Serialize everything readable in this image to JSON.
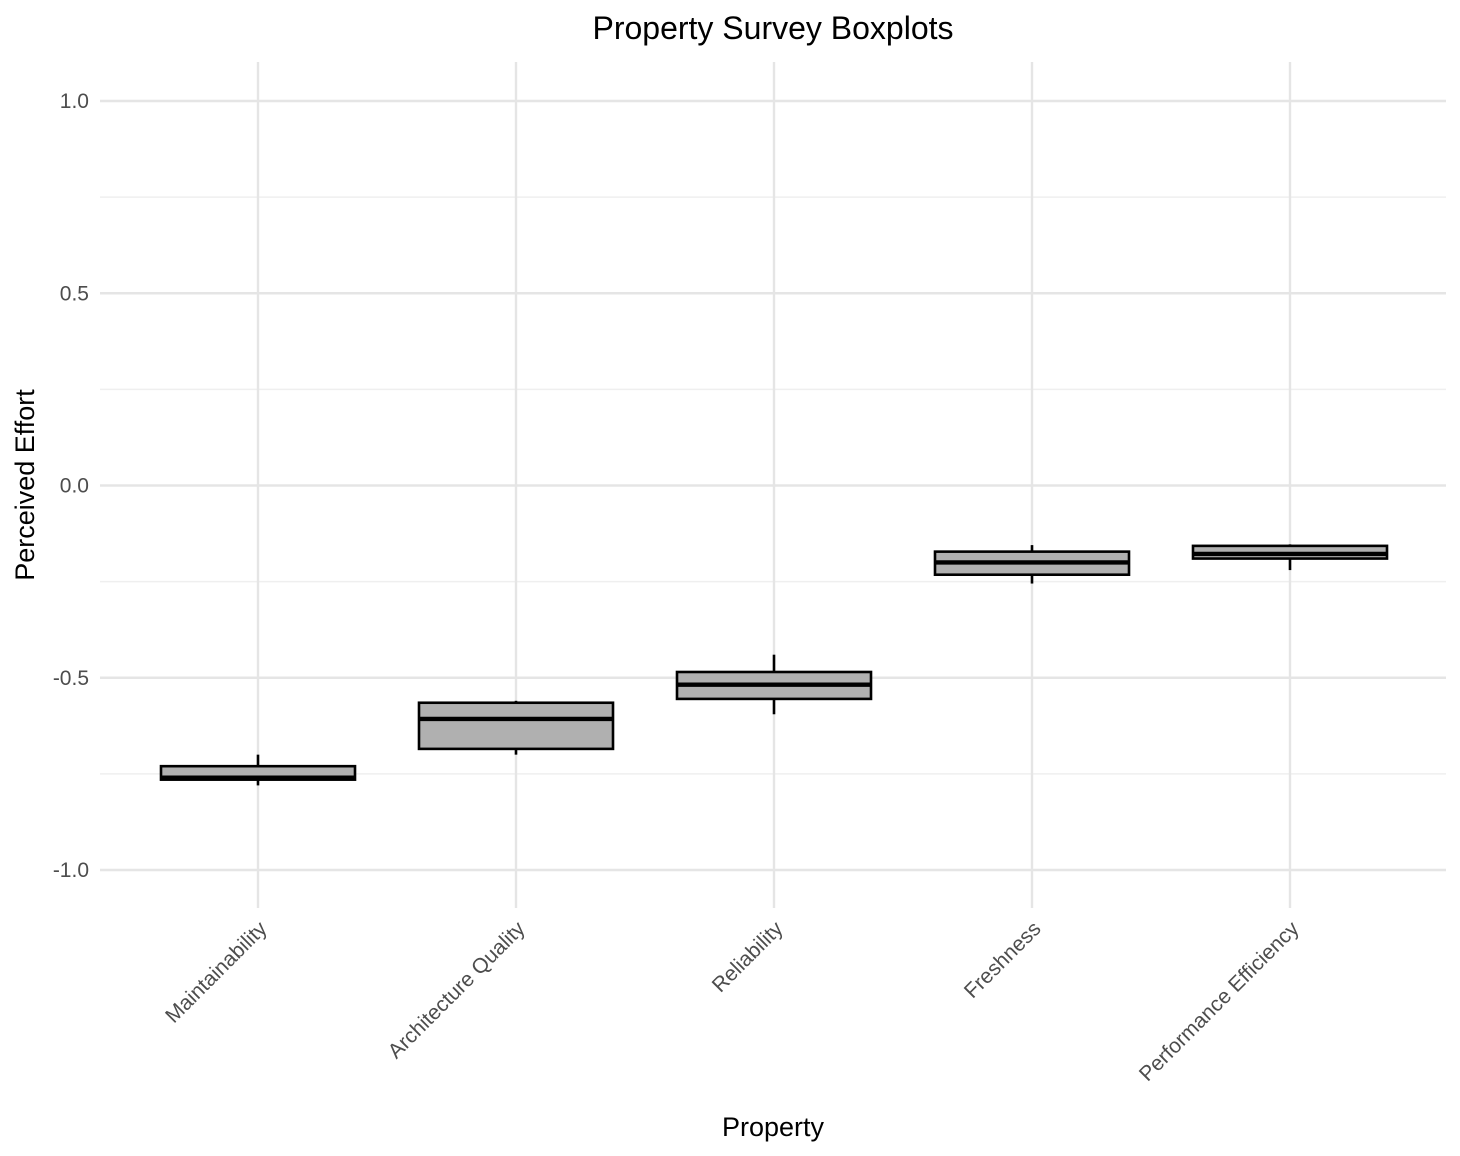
{
  "chart_data": {
    "type": "boxplot",
    "title": "Property Survey Boxplots",
    "xlabel": "Property",
    "ylabel": "Perceived Effort",
    "ylim": [
      -1.1,
      1.1
    ],
    "yticks": [
      -1.0,
      -0.5,
      0.0,
      0.5,
      1.0
    ],
    "ytick_labels": [
      "-1.0",
      "-0.5",
      "0.0",
      "0.5",
      "1.0"
    ],
    "grid": true,
    "fill_color": "#b0b0b0",
    "categories": [
      "Maintainability",
      "Architecture Quality",
      "Reliability",
      "Freshness",
      "Performance Efficiency"
    ],
    "boxes": [
      {
        "category": "Maintainability",
        "whisker_low": -0.78,
        "q1": -0.765,
        "median": -0.76,
        "q3": -0.73,
        "whisker_high": -0.7
      },
      {
        "category": "Architecture Quality",
        "whisker_low": -0.7,
        "q1": -0.685,
        "median": -0.607,
        "q3": -0.565,
        "whisker_high": -0.56
      },
      {
        "category": "Reliability",
        "whisker_low": -0.595,
        "q1": -0.555,
        "median": -0.518,
        "q3": -0.485,
        "whisker_high": -0.44
      },
      {
        "category": "Freshness",
        "whisker_low": -0.255,
        "q1": -0.232,
        "median": -0.2,
        "q3": -0.172,
        "whisker_high": -0.155
      },
      {
        "category": "Performance Efficiency",
        "whisker_low": -0.22,
        "q1": -0.19,
        "median": -0.178,
        "q3": -0.157,
        "whisker_high": -0.153
      }
    ]
  }
}
